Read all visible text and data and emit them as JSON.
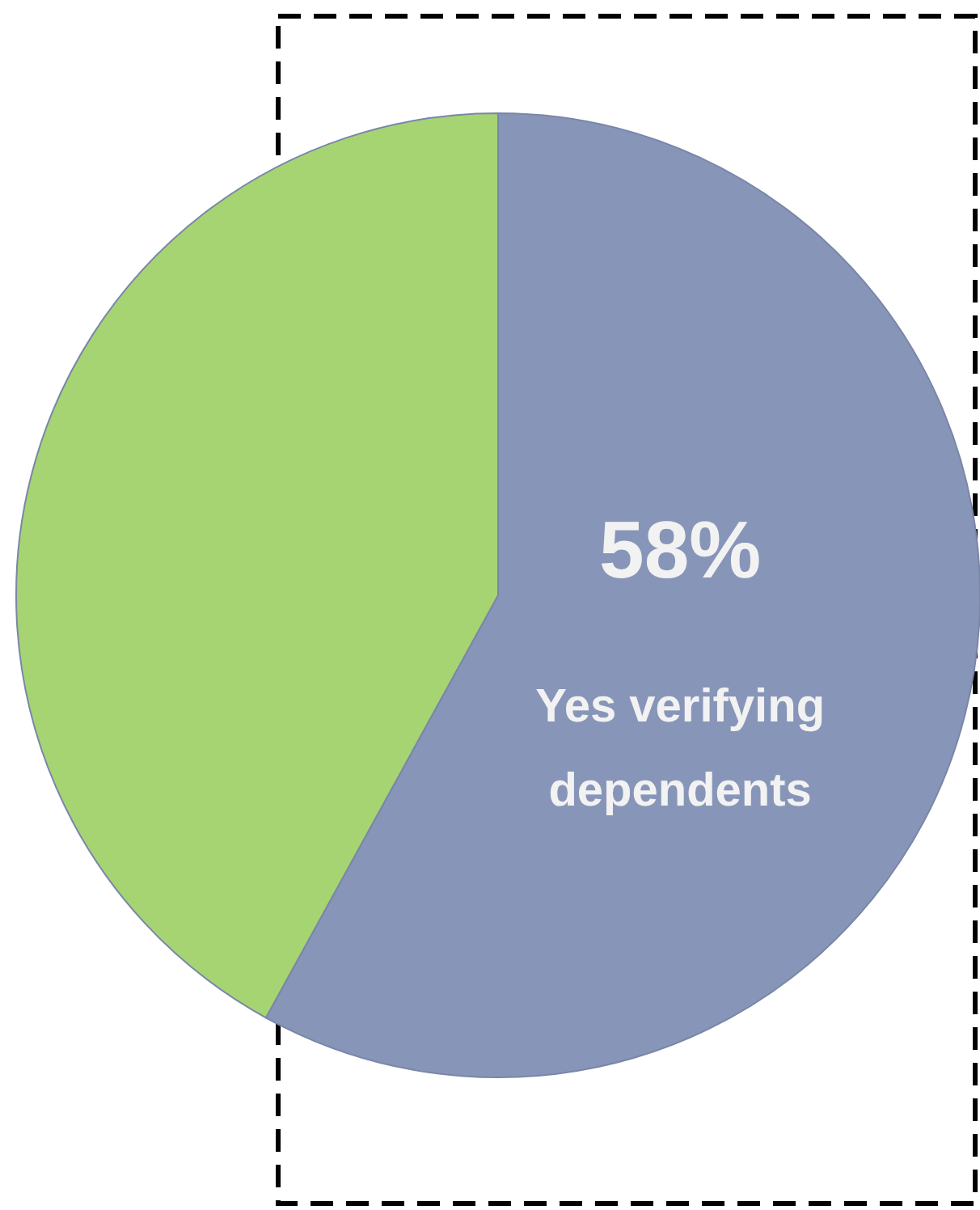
{
  "chart_data": {
    "type": "pie",
    "categories": [
      "Yes verifying dependents",
      null
    ],
    "values": [
      58,
      42
    ],
    "colors": [
      "#8796b8",
      "#a6d473"
    ],
    "value_labels": [
      "58%",
      null
    ]
  }
}
